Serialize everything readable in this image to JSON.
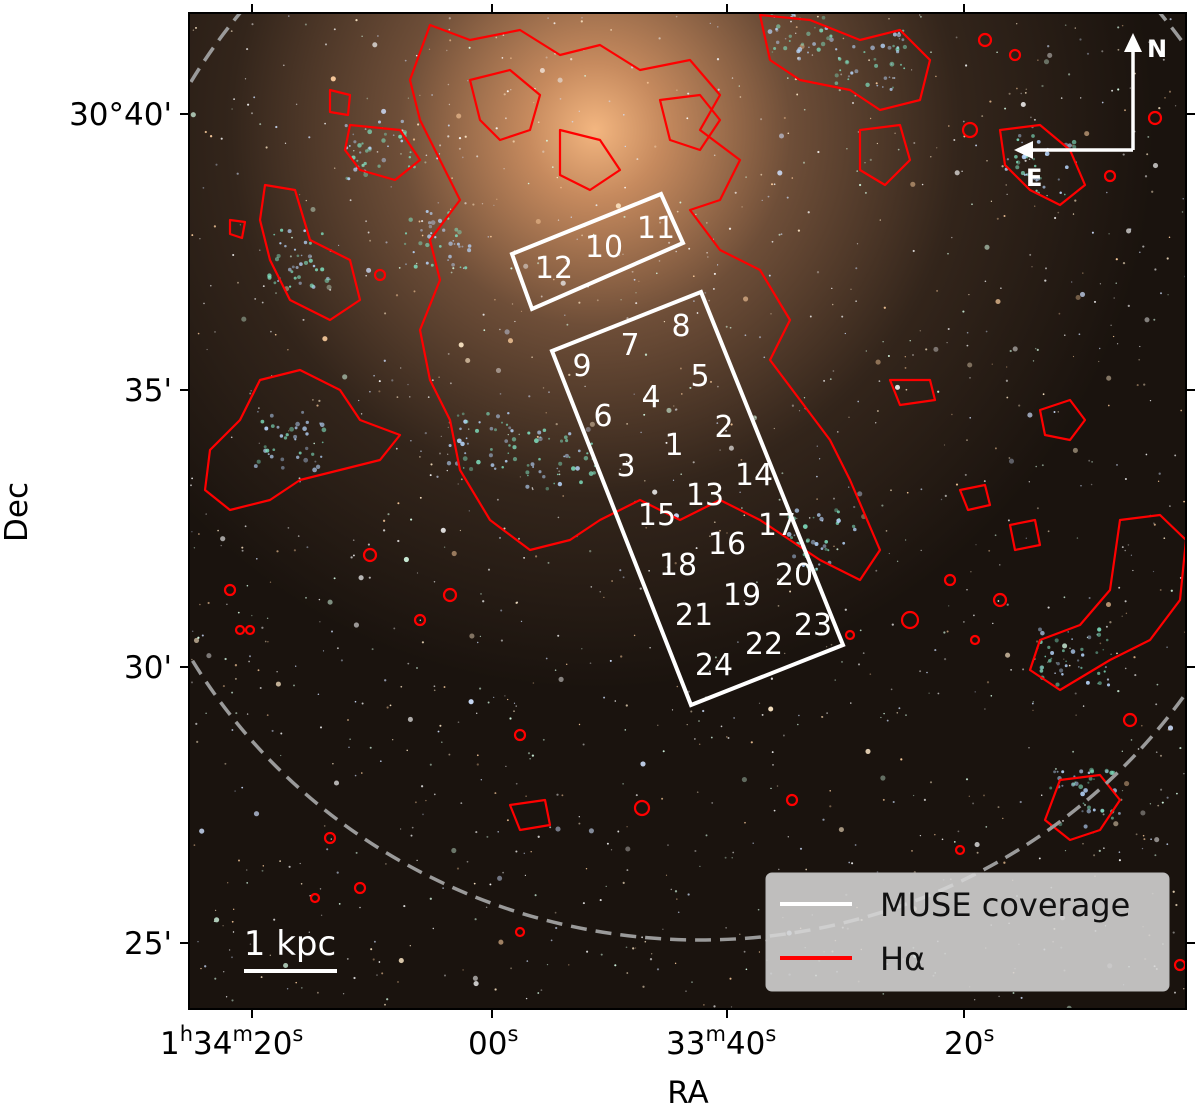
{
  "axes": {
    "xlabel": "RA",
    "ylabel": "Dec",
    "x_ticks": [
      {
        "label": "1h34m20s",
        "main": "1",
        "sup1": "h",
        "mid": "34",
        "sup2": "m",
        "end": "20",
        "sup3": "s"
      },
      {
        "label": "00s",
        "main": "00",
        "sup": "s"
      },
      {
        "label": "33m40s",
        "main": "33",
        "sup1": "m",
        "mid": "40",
        "sup2": "s"
      },
      {
        "label": "20s",
        "main": "20",
        "sup": "s"
      }
    ],
    "y_ticks": [
      "30°40'",
      "35'",
      "30'",
      "25'"
    ]
  },
  "compass": {
    "north": "N",
    "east": "E"
  },
  "scalebar": {
    "label": "1 kpc"
  },
  "legend": {
    "entries": [
      {
        "label": "MUSE coverage",
        "color": "#ffffff"
      },
      {
        "label": "Hα",
        "color": "#ff0000"
      }
    ]
  },
  "fields": [
    "1",
    "2",
    "3",
    "4",
    "5",
    "6",
    "7",
    "8",
    "9",
    "10",
    "11",
    "12",
    "13",
    "14",
    "15",
    "16",
    "17",
    "18",
    "19",
    "20",
    "21",
    "22",
    "23",
    "24"
  ],
  "colors": {
    "background": "#1c140e",
    "galaxy_core": "#e0a070",
    "halpha_contour": "#ff0000",
    "muse_box": "#ffffff",
    "circle": "#9a9a9a"
  }
}
